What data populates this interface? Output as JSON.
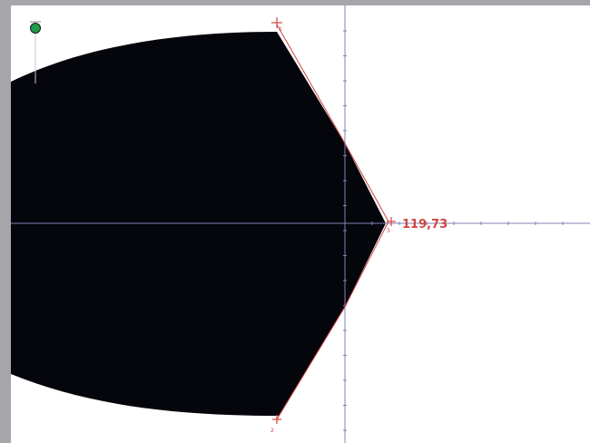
{
  "colors": {
    "frame": "#a7a5a9",
    "canvas": "#ffffff",
    "shape": "#05050c",
    "axis": "#8282b4",
    "measure": "#d0453f",
    "handle": "#1f9a47"
  },
  "measurement": {
    "label": "119,73"
  },
  "vertices": [
    {
      "label": "1"
    },
    {
      "label": "2"
    },
    {
      "label": "3"
    }
  ],
  "icons": {
    "handle": "pin-handle-icon",
    "vertex_marker": "crosshair-icon"
  }
}
